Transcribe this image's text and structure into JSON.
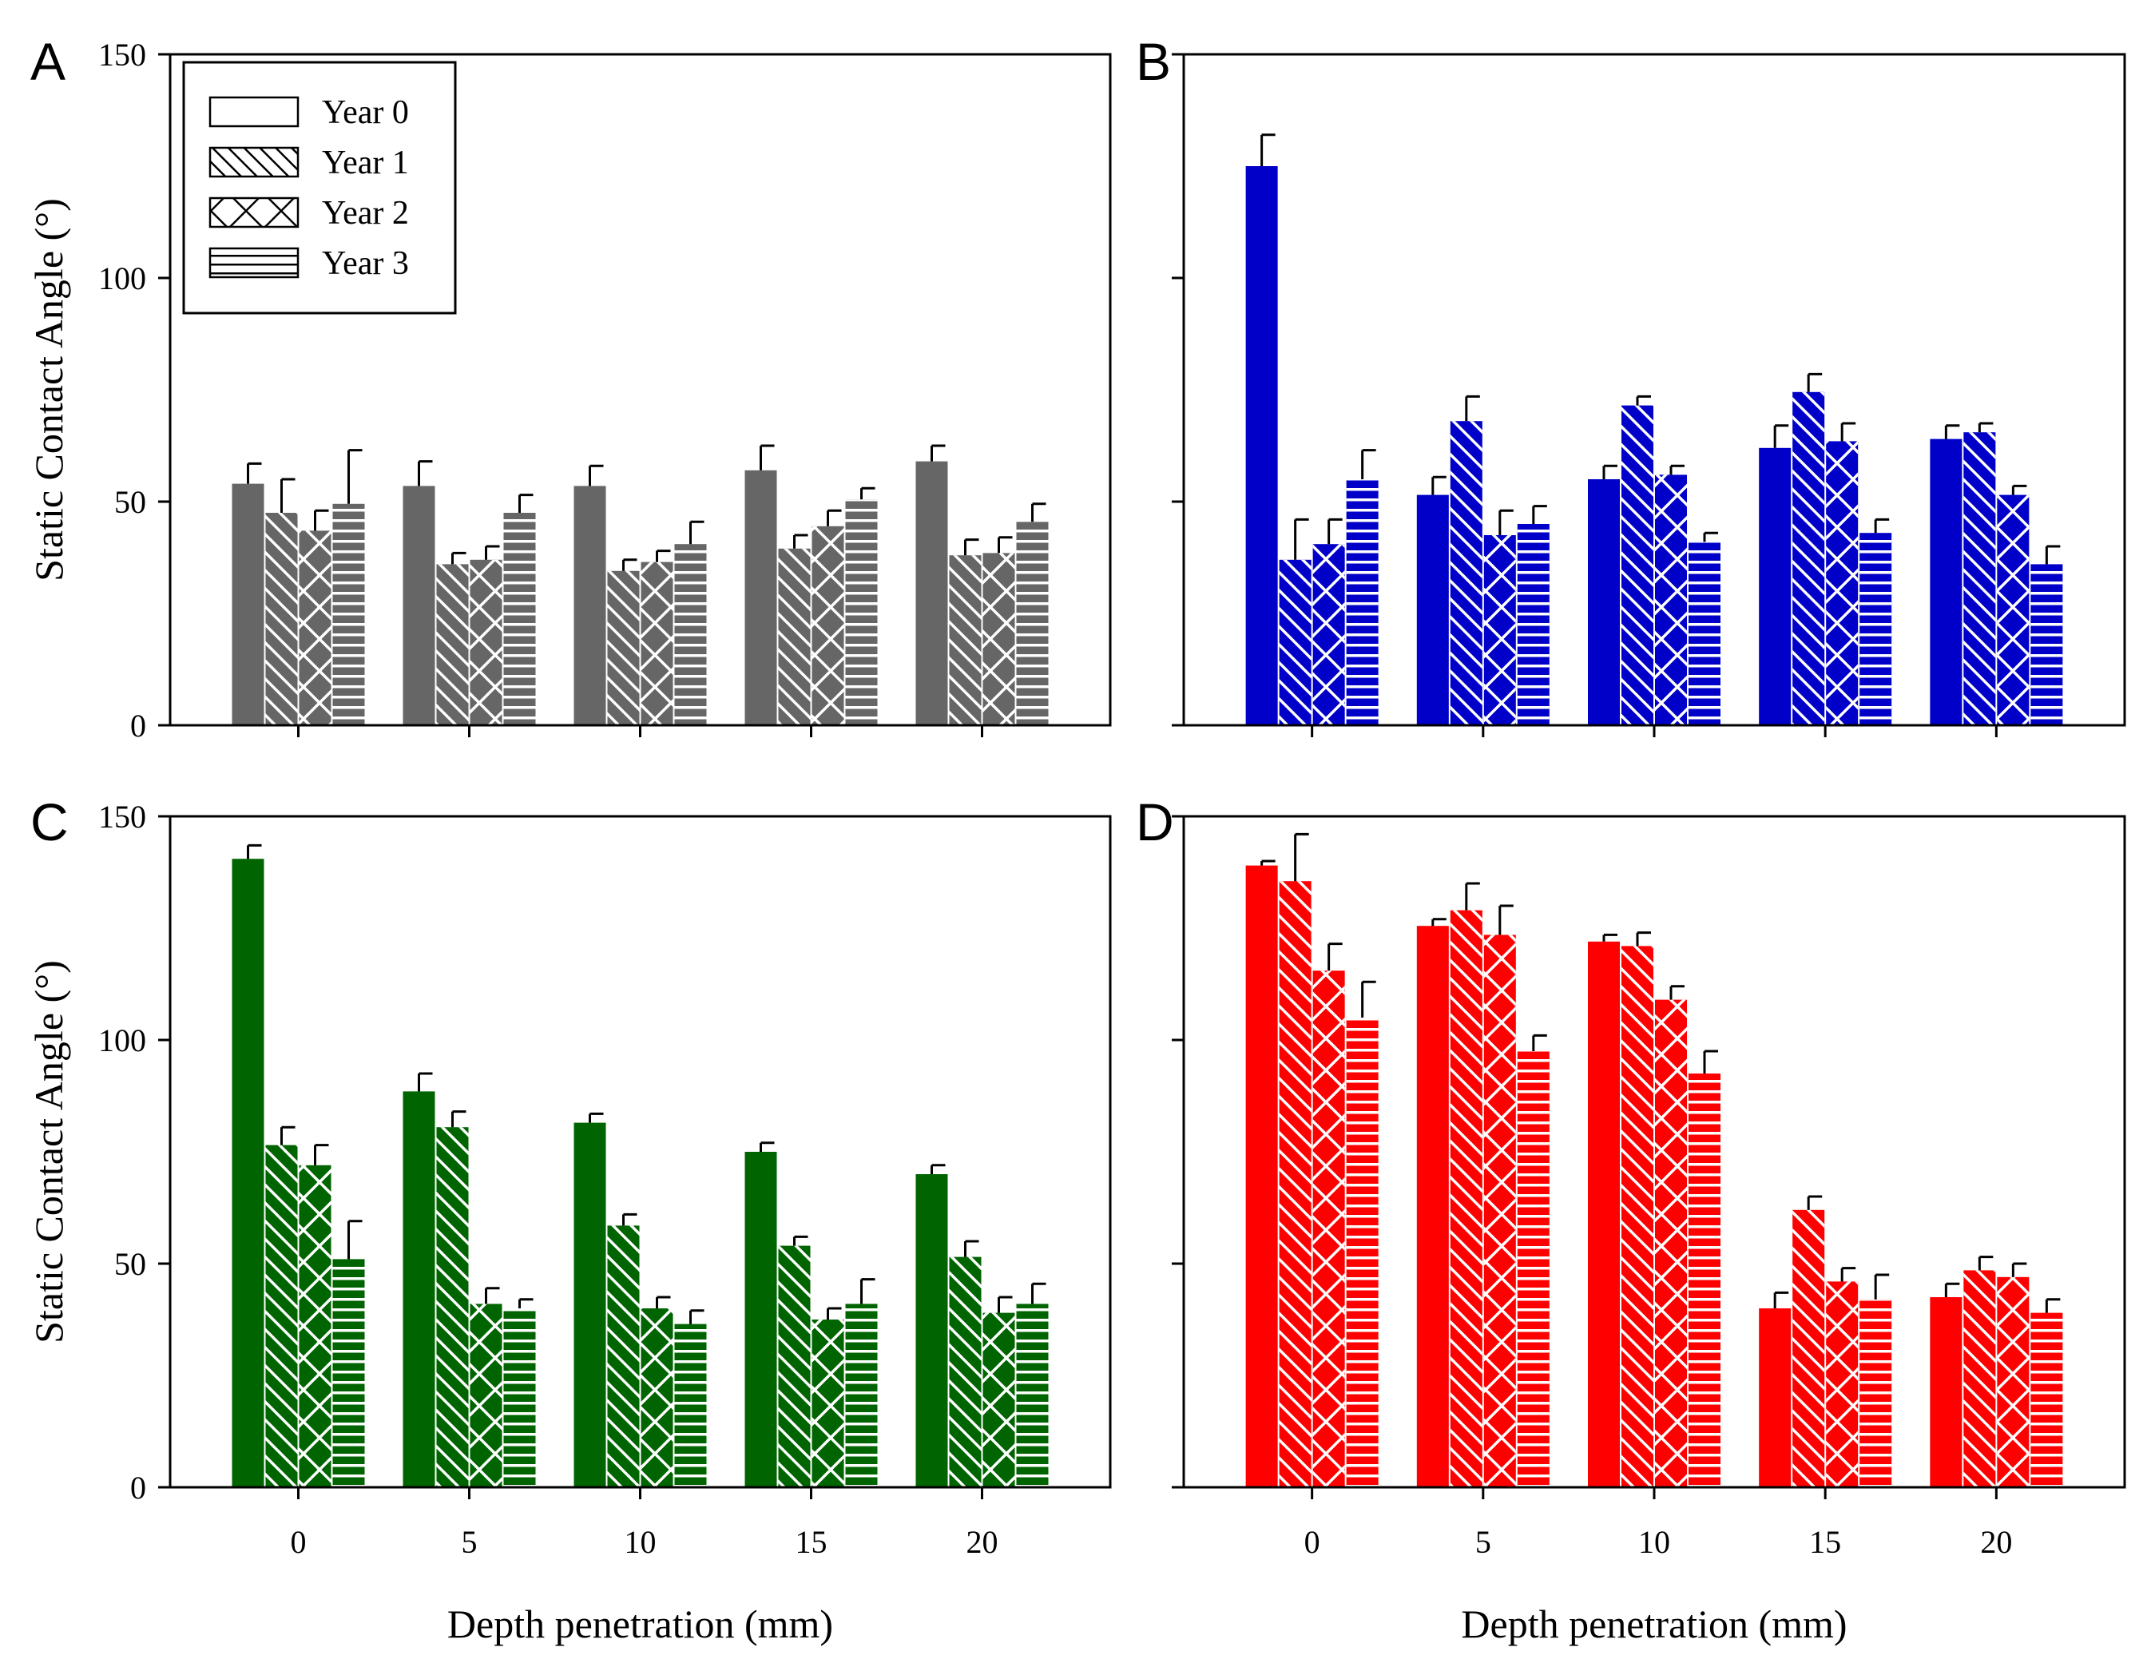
{
  "chart_data": [
    {
      "panel": "A",
      "type": "bar",
      "color": "#666666",
      "categories": [
        "0",
        "5",
        "10",
        "15",
        "20"
      ],
      "ylabel": "Static Contact Angle (°)",
      "xlabel": "",
      "ylim": [
        0,
        150
      ],
      "yticks": [
        "0",
        "50",
        "100",
        "150"
      ],
      "series": [
        {
          "name": "Year 0",
          "values": [
            54,
            53.5,
            53.5,
            57,
            59
          ],
          "errors": [
            4.5,
            5.5,
            4.5,
            5.5,
            3.5
          ]
        },
        {
          "name": "Year 1",
          "values": [
            47.5,
            36,
            34.5,
            39.5,
            38
          ],
          "errors": [
            7.5,
            2.5,
            2.5,
            3,
            3.5
          ]
        },
        {
          "name": "Year 2",
          "values": [
            43.5,
            37,
            36.5,
            44.5,
            38.5
          ],
          "errors": [
            4.5,
            3,
            2.5,
            3.5,
            3.5
          ]
        },
        {
          "name": "Year 3",
          "values": [
            49.5,
            47.5,
            40.5,
            50.5,
            45.5
          ],
          "errors": [
            12,
            4,
            5,
            2.5,
            4
          ]
        }
      ],
      "legend": {
        "position": "top-left",
        "entries": [
          "Year 0",
          "Year 1",
          "Year 2",
          "Year 3"
        ]
      }
    },
    {
      "panel": "B",
      "type": "bar",
      "color": "#0000c8",
      "categories": [
        "0",
        "5",
        "10",
        "15",
        "20"
      ],
      "ylabel": "",
      "xlabel": "",
      "ylim": [
        0,
        150
      ],
      "yticks": [],
      "series": [
        {
          "name": "Year 0",
          "values": [
            125,
            51.5,
            55,
            62,
            64
          ],
          "errors": [
            7,
            4,
            3,
            5,
            3
          ]
        },
        {
          "name": "Year 1",
          "values": [
            37,
            68,
            71.5,
            74.5,
            65.5
          ],
          "errors": [
            9,
            5.5,
            2,
            4,
            2
          ]
        },
        {
          "name": "Year 2",
          "values": [
            40.5,
            42.5,
            56,
            63.5,
            51.5
          ],
          "errors": [
            5.5,
            5.5,
            2,
            4,
            2
          ]
        },
        {
          "name": "Year 3",
          "values": [
            55,
            45,
            41,
            43,
            36
          ],
          "errors": [
            6.5,
            4,
            2,
            3,
            4
          ]
        }
      ]
    },
    {
      "panel": "C",
      "type": "bar",
      "color": "#006400",
      "categories": [
        "0",
        "5",
        "10",
        "15",
        "20"
      ],
      "ylabel": "Static Contact Angle (°)",
      "xlabel": "Depth penetration (mm)",
      "ylim": [
        0,
        150
      ],
      "yticks": [
        "0",
        "50",
        "100",
        "150"
      ],
      "series": [
        {
          "name": "Year 0",
          "values": [
            140.5,
            88.5,
            81.5,
            75,
            70
          ],
          "errors": [
            3,
            4,
            2,
            2,
            2
          ]
        },
        {
          "name": "Year 1",
          "values": [
            76.5,
            80.5,
            58.5,
            54,
            51.5
          ],
          "errors": [
            4,
            3.5,
            2.5,
            2,
            3.5
          ]
        },
        {
          "name": "Year 2",
          "values": [
            72,
            41,
            40,
            37.5,
            39
          ],
          "errors": [
            4.5,
            3.5,
            2.5,
            2.5,
            3.5
          ]
        },
        {
          "name": "Year 3",
          "values": [
            51,
            40,
            36.5,
            41,
            41
          ],
          "errors": [
            8.5,
            2,
            3,
            5.5,
            4.5
          ]
        }
      ]
    },
    {
      "panel": "D",
      "type": "bar",
      "color": "#ff0000",
      "categories": [
        "0",
        "5",
        "10",
        "15",
        "20"
      ],
      "ylabel": "",
      "xlabel": "Depth penetration (mm)",
      "ylim": [
        0,
        150
      ],
      "yticks": [],
      "series": [
        {
          "name": "Year 0",
          "values": [
            139,
            125.5,
            122,
            40,
            42.5
          ],
          "errors": [
            1,
            1.5,
            1.5,
            3.5,
            3
          ]
        },
        {
          "name": "Year 1",
          "values": [
            135.5,
            129,
            121,
            62,
            48.5
          ],
          "errors": [
            10.5,
            6,
            3,
            3,
            3
          ]
        },
        {
          "name": "Year 2",
          "values": [
            115.5,
            123.5,
            109,
            46,
            47
          ],
          "errors": [
            6,
            6.5,
            3,
            3,
            3
          ]
        },
        {
          "name": "Year 3",
          "values": [
            105,
            97.5,
            92.5,
            42,
            39
          ],
          "errors": [
            8,
            3.5,
            5,
            5.5,
            3
          ]
        }
      ]
    }
  ]
}
